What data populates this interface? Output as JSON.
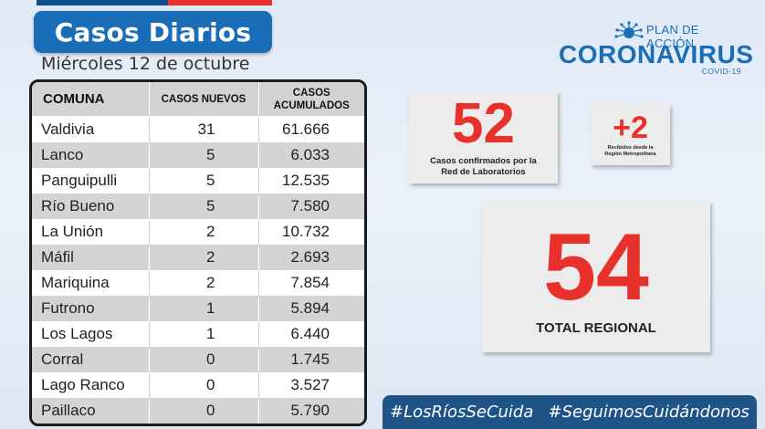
{
  "header": {
    "title": "Casos Diarios",
    "date": "Miércoles 12 de octubre"
  },
  "logo": {
    "plan": "PLAN DE ACCIÓN",
    "name": "CORONAVIRUS",
    "sub": "COVID-19"
  },
  "table": {
    "headers": {
      "comuna": "COMUNA",
      "nuevos": "CASOS NUEVOS",
      "acumulados_1": "CASOS",
      "acumulados_2": "ACUMULADOS"
    },
    "rows": [
      {
        "comuna": "Valdivia",
        "nuevos": "31",
        "acumulados": "61.666"
      },
      {
        "comuna": "Lanco",
        "nuevos": "5",
        "acumulados": "6.033"
      },
      {
        "comuna": "Panguipulli",
        "nuevos": "5",
        "acumulados": "12.535"
      },
      {
        "comuna": "Río Bueno",
        "nuevos": "5",
        "acumulados": "7.580"
      },
      {
        "comuna": "La Unión",
        "nuevos": "2",
        "acumulados": "10.732"
      },
      {
        "comuna": "Máfil",
        "nuevos": "2",
        "acumulados": "2.693"
      },
      {
        "comuna": "Mariquina",
        "nuevos": "2",
        "acumulados": "7.854"
      },
      {
        "comuna": "Futrono",
        "nuevos": "1",
        "acumulados": "5.894"
      },
      {
        "comuna": "Los Lagos",
        "nuevos": "1",
        "acumulados": "6.440"
      },
      {
        "comuna": "Corral",
        "nuevos": "0",
        "acumulados": "1.745"
      },
      {
        "comuna": "Lago Ranco",
        "nuevos": "0",
        "acumulados": "3.527"
      },
      {
        "comuna": "Paillaco",
        "nuevos": "0",
        "acumulados": "5.790"
      }
    ]
  },
  "cards": {
    "lab": {
      "value": "52",
      "caption_1": "Casos confirmados por la",
      "caption_2": "Red de Laboratorios"
    },
    "rm": {
      "value": "+2",
      "caption_1": "Recibidos desde la",
      "caption_2": "Región Metropolitana"
    },
    "total": {
      "value": "54",
      "caption": "TOTAL REGIONAL"
    }
  },
  "hashtags": [
    "#LosRíosSeCuida",
    "#SeguimosCuidándonos"
  ],
  "colors": {
    "brand_blue": "#1a6eb7",
    "accent_red": "#e8312a",
    "bar_navy": "#1e5487"
  }
}
